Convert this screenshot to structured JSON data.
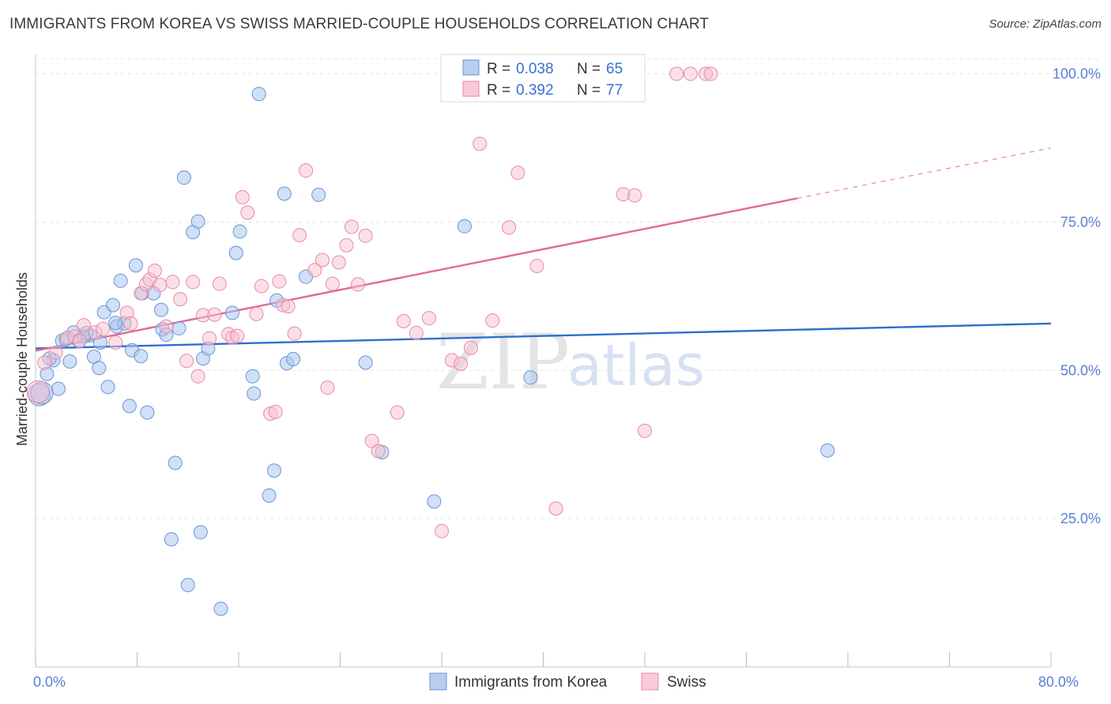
{
  "title": "IMMIGRANTS FROM KOREA VS SWISS MARRIED-COUPLE HOUSEHOLDS CORRELATION CHART",
  "source": "Source: ZipAtlas.com",
  "colors": {
    "korea_fill": "#aac6ee",
    "korea_stroke": "#6b93d6",
    "korea_line": "#2e6fcc",
    "swiss_fill": "#f7bfd0",
    "swiss_stroke": "#e68aa7",
    "swiss_line": "#e06a95",
    "tick_label": "#5b7fd4"
  },
  "legend": {
    "korea": {
      "r_label": "R = ",
      "r_value": "0.038",
      "n_label": "N = ",
      "n_value": "65"
    },
    "swiss": {
      "r_label": "R = ",
      "r_value": "0.392",
      "n_label": "N = ",
      "n_value": "77"
    }
  },
  "bottom_legend": {
    "korea": "Immigrants from Korea",
    "swiss": "Swiss"
  },
  "watermark": {
    "zip": "ZIP",
    "atlas": "atlas"
  },
  "chart_data": {
    "type": "scatter",
    "xlabel": "",
    "ylabel": "Married-couple Households",
    "xlim": [
      0,
      80
    ],
    "ylim": [
      0,
      103
    ],
    "x_tick_labels": [
      {
        "value": 0,
        "label": "0.0%"
      },
      {
        "value": 80,
        "label": "80.0%"
      }
    ],
    "y_tick_labels": [
      {
        "value": 25,
        "label": "25.0%"
      },
      {
        "value": 50,
        "label": "50.0%"
      },
      {
        "value": 75,
        "label": "75.0%"
      },
      {
        "value": 100,
        "label": "100.0%"
      }
    ],
    "x_minor_ticks": [
      0,
      8,
      16,
      24,
      32,
      40,
      48,
      56,
      64,
      72,
      80
    ],
    "grid": true,
    "legend_position": "top-center",
    "series": [
      {
        "name": "Immigrants from Korea",
        "trend": {
          "x": [
            0,
            80
          ],
          "y": [
            53.7,
            57.9
          ]
        },
        "points": [
          [
            0.3,
            45.9
          ],
          [
            0.9,
            49.4
          ],
          [
            1.4,
            51.7
          ],
          [
            1.8,
            46.9
          ],
          [
            2.7,
            51.5
          ],
          [
            2.1,
            55.0
          ],
          [
            3.0,
            56.4
          ],
          [
            3.4,
            55.0
          ],
          [
            4.3,
            55.9
          ],
          [
            4.6,
            52.3
          ],
          [
            5.0,
            50.4
          ],
          [
            5.1,
            54.7
          ],
          [
            5.4,
            59.8
          ],
          [
            5.7,
            47.2
          ],
          [
            6.1,
            61.0
          ],
          [
            6.4,
            57.4
          ],
          [
            6.7,
            65.1
          ],
          [
            7.0,
            57.9
          ],
          [
            7.4,
            44.0
          ],
          [
            7.6,
            53.4
          ],
          [
            7.9,
            67.7
          ],
          [
            8.3,
            52.4
          ],
          [
            8.4,
            63.0
          ],
          [
            8.8,
            42.9
          ],
          [
            9.3,
            63.0
          ],
          [
            9.9,
            60.2
          ],
          [
            10.0,
            56.9
          ],
          [
            10.3,
            56.0
          ],
          [
            11.0,
            34.4
          ],
          [
            11.3,
            57.1
          ],
          [
            11.7,
            82.5
          ],
          [
            12.0,
            13.8
          ],
          [
            12.4,
            73.3
          ],
          [
            12.8,
            75.1
          ],
          [
            13.2,
            52.0
          ],
          [
            13.6,
            53.7
          ],
          [
            15.5,
            59.7
          ],
          [
            15.8,
            69.8
          ],
          [
            16.1,
            73.4
          ],
          [
            17.1,
            49.0
          ],
          [
            17.2,
            46.1
          ],
          [
            17.6,
            96.6
          ],
          [
            18.4,
            28.9
          ],
          [
            18.8,
            33.1
          ],
          [
            19.0,
            61.8
          ],
          [
            19.6,
            79.8
          ],
          [
            19.8,
            51.2
          ],
          [
            20.3,
            51.9
          ],
          [
            21.3,
            65.8
          ],
          [
            22.3,
            79.6
          ],
          [
            26.0,
            51.3
          ],
          [
            27.3,
            36.2
          ],
          [
            31.4,
            27.9
          ],
          [
            33.8,
            74.3
          ],
          [
            39.0,
            48.8
          ],
          [
            62.4,
            36.5
          ],
          [
            14.6,
            9.8
          ],
          [
            13.0,
            22.7
          ],
          [
            10.7,
            21.5
          ],
          [
            3.8,
            55.7
          ],
          [
            1.1,
            52.0
          ],
          [
            2.4,
            55.2
          ],
          [
            4.0,
            56.3
          ],
          [
            6.3,
            58.0
          ],
          [
            0.5,
            46.2
          ]
        ]
      },
      {
        "name": "Swiss",
        "trend": {
          "x": [
            0,
            60
          ],
          "y": [
            53.3,
            79.0
          ]
        },
        "trend_dashed": {
          "x": [
            60,
            80
          ],
          "y": [
            79.0,
            87.5
          ]
        },
        "points": [
          [
            0.2,
            46.4
          ],
          [
            0.7,
            51.3
          ],
          [
            1.6,
            53.0
          ],
          [
            2.5,
            55.5
          ],
          [
            3.1,
            55.7
          ],
          [
            3.8,
            57.6
          ],
          [
            4.7,
            56.4
          ],
          [
            5.3,
            57.0
          ],
          [
            6.3,
            54.7
          ],
          [
            7.2,
            59.7
          ],
          [
            7.5,
            57.9
          ],
          [
            8.3,
            63.0
          ],
          [
            8.7,
            64.5
          ],
          [
            9.0,
            65.3
          ],
          [
            9.4,
            66.8
          ],
          [
            9.8,
            64.4
          ],
          [
            10.3,
            57.4
          ],
          [
            10.8,
            64.9
          ],
          [
            11.4,
            62.0
          ],
          [
            11.9,
            51.6
          ],
          [
            12.4,
            64.9
          ],
          [
            12.8,
            49.0
          ],
          [
            13.2,
            59.3
          ],
          [
            13.7,
            55.4
          ],
          [
            14.1,
            59.4
          ],
          [
            14.5,
            64.6
          ],
          [
            15.2,
            56.1
          ],
          [
            15.5,
            55.5
          ],
          [
            15.9,
            55.8
          ],
          [
            16.3,
            79.2
          ],
          [
            16.7,
            76.6
          ],
          [
            17.4,
            59.5
          ],
          [
            17.8,
            64.2
          ],
          [
            18.5,
            42.7
          ],
          [
            18.9,
            43.0
          ],
          [
            19.2,
            65.0
          ],
          [
            19.5,
            61.0
          ],
          [
            19.9,
            60.8
          ],
          [
            20.4,
            56.2
          ],
          [
            20.8,
            72.8
          ],
          [
            21.3,
            83.7
          ],
          [
            22.0,
            66.9
          ],
          [
            22.6,
            68.6
          ],
          [
            23.0,
            47.1
          ],
          [
            23.4,
            64.6
          ],
          [
            23.9,
            68.2
          ],
          [
            24.5,
            71.1
          ],
          [
            24.9,
            74.2
          ],
          [
            25.4,
            64.5
          ],
          [
            26.0,
            72.7
          ],
          [
            26.5,
            38.1
          ],
          [
            27.0,
            36.4
          ],
          [
            28.5,
            42.9
          ],
          [
            29.0,
            58.3
          ],
          [
            30.0,
            56.3
          ],
          [
            31.0,
            58.8
          ],
          [
            32.0,
            22.9
          ],
          [
            32.8,
            51.7
          ],
          [
            33.5,
            51.1
          ],
          [
            34.3,
            53.8
          ],
          [
            35.0,
            88.2
          ],
          [
            36.0,
            58.4
          ],
          [
            37.3,
            74.1
          ],
          [
            38.0,
            83.3
          ],
          [
            39.5,
            67.6
          ],
          [
            41.0,
            26.7
          ],
          [
            43.5,
            100.0
          ],
          [
            45.0,
            100.0
          ],
          [
            46.3,
            79.7
          ],
          [
            47.2,
            79.5
          ],
          [
            48.0,
            39.8
          ],
          [
            50.5,
            100.0
          ],
          [
            51.6,
            100.0
          ],
          [
            52.8,
            100.0
          ],
          [
            53.2,
            100.0
          ],
          [
            39.0,
            100.0
          ],
          [
            3.5,
            55.0
          ]
        ]
      }
    ]
  }
}
